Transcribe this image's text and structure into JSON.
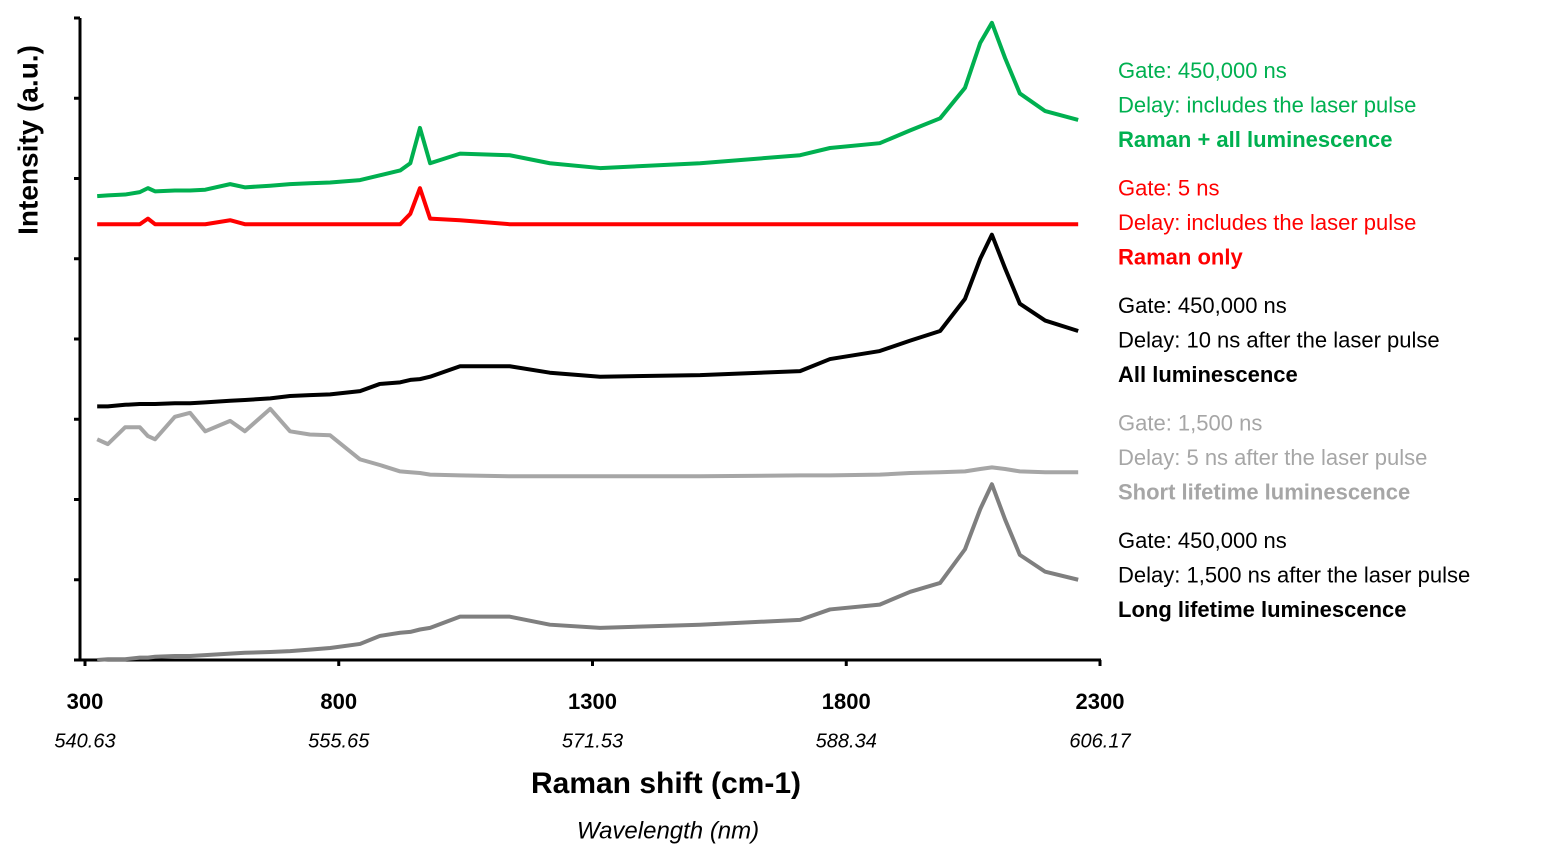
{
  "chart_data": {
    "type": "line",
    "y_label": "Intensity (a.u.)",
    "x_label": "Raman shift (cm-1)",
    "x2_label": "Wavelength (nm)",
    "x": [
      324,
      345,
      379,
      408,
      424,
      438,
      477,
      507,
      537,
      586,
      615,
      665,
      704,
      743,
      783,
      842,
      881,
      921,
      941,
      960,
      980,
      1039,
      1137,
      1216,
      1315,
      1512,
      1709,
      1768,
      1866,
      1926,
      1985,
      2034,
      2064,
      2087,
      2113,
      2142,
      2192,
      2257
    ],
    "xlim": [
      300,
      2300
    ],
    "xticks": [
      300,
      800,
      1300,
      1800,
      2300
    ],
    "x2ticks": [
      {
        "value": 300,
        "label": "540.63"
      },
      {
        "value": 800,
        "label": "555.65"
      },
      {
        "value": 1300,
        "label": "571.53"
      },
      {
        "value": 1800,
        "label": "588.34"
      },
      {
        "value": 2300,
        "label": "606.17"
      }
    ],
    "ylim": [
      0,
      8
    ],
    "yticks": [
      0,
      1,
      2,
      3,
      4,
      5,
      6,
      7,
      8
    ],
    "series": [
      {
        "name": "Raman + all luminescence",
        "gate": "Gate: 450,000 ns",
        "delay": "Delay: includes the laser pulse",
        "color": "#00b050",
        "label_color": "#00b050",
        "values": [
          5.78,
          5.79,
          5.8,
          5.83,
          5.88,
          5.84,
          5.85,
          5.85,
          5.86,
          5.93,
          5.89,
          5.91,
          5.93,
          5.94,
          5.95,
          5.98,
          6.04,
          6.1,
          6.19,
          6.63,
          6.19,
          6.31,
          6.29,
          6.19,
          6.13,
          6.19,
          6.29,
          6.38,
          6.44,
          6.6,
          6.75,
          7.13,
          7.69,
          7.94,
          7.5,
          7.06,
          6.84,
          6.73
        ]
      },
      {
        "name": "Raman only",
        "gate": "Gate: 5 ns",
        "delay": "Delay: includes the laser pulse",
        "color": "#ff0000",
        "label_color": "#ff0000",
        "values": [
          5.43,
          5.43,
          5.43,
          5.43,
          5.5,
          5.43,
          5.43,
          5.43,
          5.43,
          5.48,
          5.43,
          5.43,
          5.43,
          5.43,
          5.43,
          5.43,
          5.43,
          5.43,
          5.56,
          5.88,
          5.5,
          5.48,
          5.43,
          5.43,
          5.43,
          5.43,
          5.43,
          5.43,
          5.43,
          5.43,
          5.43,
          5.43,
          5.43,
          5.43,
          5.43,
          5.43,
          5.43,
          5.43
        ]
      },
      {
        "name": "All luminescence",
        "gate": "Gate: 450,000 ns",
        "delay": "Delay: 10 ns after the laser pulse",
        "color": "#000000",
        "label_color": "#000000",
        "values": [
          3.16,
          3.16,
          3.18,
          3.19,
          3.19,
          3.19,
          3.2,
          3.2,
          3.21,
          3.23,
          3.24,
          3.26,
          3.29,
          3.3,
          3.31,
          3.35,
          3.44,
          3.46,
          3.49,
          3.5,
          3.53,
          3.66,
          3.66,
          3.58,
          3.53,
          3.55,
          3.6,
          3.75,
          3.85,
          3.98,
          4.1,
          4.5,
          5,
          5.3,
          4.88,
          4.44,
          4.23,
          4.1
        ]
      },
      {
        "name": "Short lifetime luminescence",
        "gate": "Gate: 1,500 ns",
        "delay": "Delay: 5 ns after the laser pulse",
        "color": "#a6a6a6",
        "label_color": "#a6a6a6",
        "values": [
          2.75,
          2.69,
          2.9,
          2.9,
          2.79,
          2.75,
          3.03,
          3.08,
          2.85,
          2.98,
          2.85,
          3.13,
          2.85,
          2.81,
          2.8,
          2.5,
          2.43,
          2.35,
          2.34,
          2.33,
          2.31,
          2.3,
          2.29,
          2.29,
          2.29,
          2.29,
          2.3,
          2.3,
          2.31,
          2.33,
          2.34,
          2.35,
          2.38,
          2.4,
          2.38,
          2.35,
          2.34,
          2.34
        ]
      },
      {
        "name": "Long lifetime luminescence",
        "gate": "Gate: 450,000 ns",
        "delay": "Delay: 1,500 ns after the laser pulse",
        "color": "#7f7f7f",
        "label_color": "#000000",
        "values": [
          0,
          0.01,
          0.01,
          0.03,
          0.03,
          0.04,
          0.05,
          0.05,
          0.06,
          0.08,
          0.09,
          0.1,
          0.11,
          0.13,
          0.15,
          0.2,
          0.3,
          0.34,
          0.35,
          0.38,
          0.4,
          0.54,
          0.54,
          0.44,
          0.4,
          0.44,
          0.5,
          0.63,
          0.69,
          0.85,
          0.96,
          1.38,
          1.88,
          2.19,
          1.75,
          1.31,
          1.1,
          1
        ]
      }
    ]
  }
}
